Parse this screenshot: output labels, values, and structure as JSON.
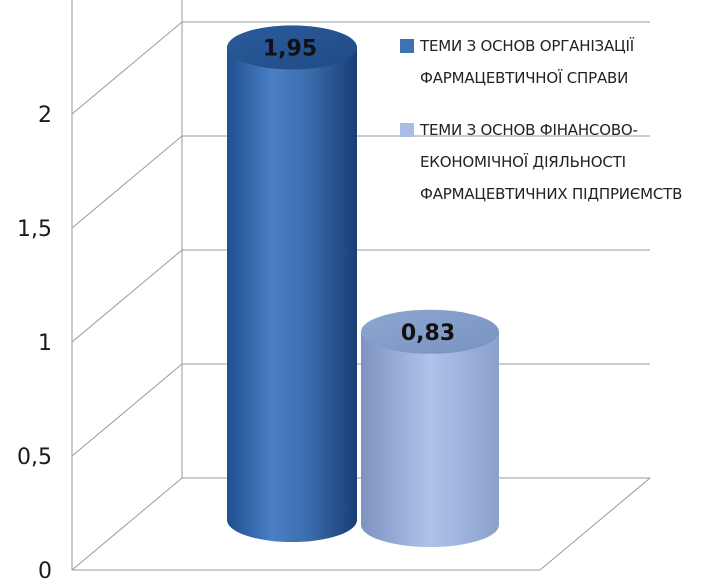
{
  "chart_data": {
    "type": "bar",
    "style": "3d-cylinder",
    "categories": [
      ""
    ],
    "series": [
      {
        "name": "ТЕМИ З ОСНОВ ОРГАНІЗАЦІЇ ФАРМАЦЕВТИЧНОЇ СПРАВИ",
        "values": [
          1.95
        ],
        "color": "#3f72b5"
      },
      {
        "name": "ТЕМИ З ОСНОВ ФІНАНСОВО-ЕКОНОМІЧНОЇ ДІЯЛЬНОСТІ ФАРМАЦЕВТИЧНИХ ПІДПРИЄМСТВ",
        "values": [
          0.83
        ],
        "color": "#a8bde3"
      }
    ],
    "data_labels": [
      "1,95",
      "0,83"
    ],
    "y_ticks": [
      "0",
      "0,5",
      "1",
      "1,5",
      "2"
    ],
    "ylim": [
      0,
      2.5
    ],
    "grid": true,
    "legend_position": "right",
    "xlabel": "",
    "ylabel": "",
    "title": ""
  },
  "legend": {
    "items": [
      {
        "lines": [
          "ТЕМИ З ОСНОВ ОРГАНІЗАЦІЇ",
          "ФАРМАЦЕВТИЧНОЇ СПРАВИ"
        ],
        "color": "#3f72b5"
      },
      {
        "lines": [
          "ТЕМИ З ОСНОВ ФІНАНСОВО-",
          "ЕКОНОМІЧНОЇ ДІЯЛЬНОСТІ",
          "ФАРМАЦЕВТИЧНИХ ПІДПРИЄМСТВ"
        ],
        "color": "#a8bde3"
      }
    ]
  }
}
